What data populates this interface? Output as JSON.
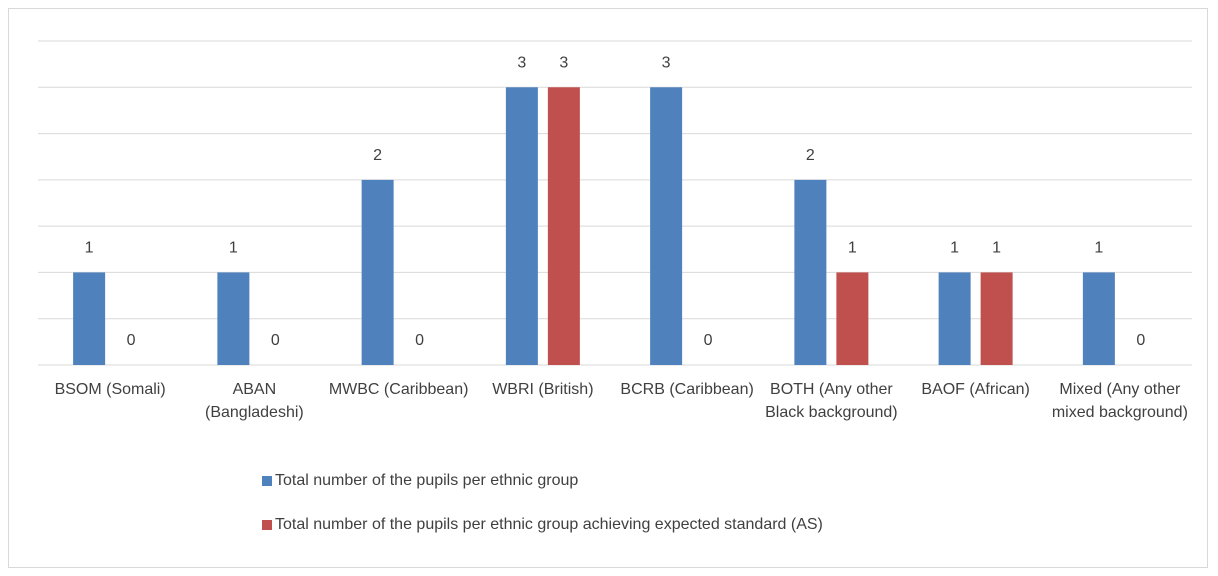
{
  "chart_data": {
    "type": "bar",
    "categories": [
      "BSOM (Somali)",
      "ABAN (Bangladeshi)",
      "MWBC (Caribbean)",
      "WBRI (British)",
      "BCRB (Caribbean)",
      "BOTH (Any other Black background)",
      "BAOF (African)",
      "Mixed (Any other mixed background)"
    ],
    "series": [
      {
        "name": "Total number of the pupils per ethnic group",
        "color": "#4f81bd",
        "values": [
          1,
          1,
          2,
          3,
          3,
          2,
          1,
          1
        ]
      },
      {
        "name": "Total number of the pupils per ethnic group achieving expected standard (AS)",
        "color": "#c0504d",
        "values": [
          0,
          0,
          0,
          3,
          0,
          1,
          1,
          0
        ]
      }
    ],
    "ylim": [
      0,
      3.5
    ],
    "yticks": [
      0,
      0.5,
      1,
      1.5,
      2,
      2.5,
      3,
      3.5
    ],
    "grid": true,
    "legend": "bottom"
  }
}
